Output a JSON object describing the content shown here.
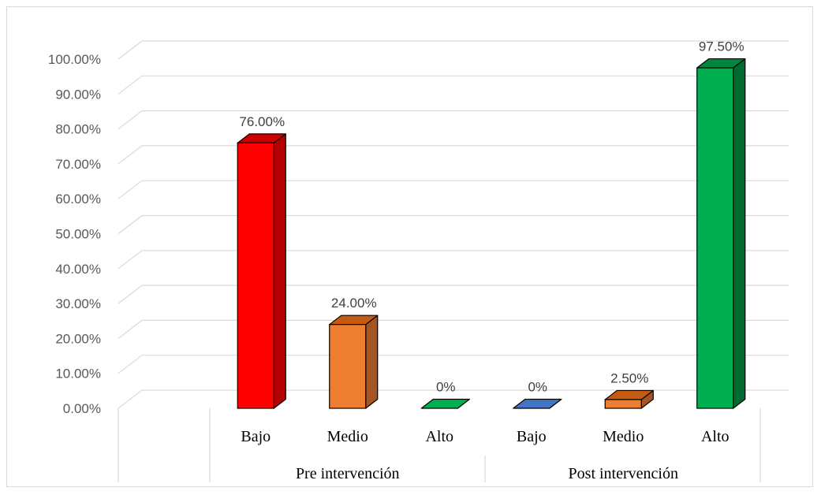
{
  "chart_data": {
    "type": "bar",
    "three_d": true,
    "grid": true,
    "legend": "none",
    "ylim": [
      0,
      100
    ],
    "y_ticks": [
      "0.00%",
      "10.00%",
      "20.00%",
      "30.00%",
      "40.00%",
      "50.00%",
      "60.00%",
      "70.00%",
      "80.00%",
      "90.00%",
      "100.00%"
    ],
    "groups": [
      {
        "label": "Pre intervención",
        "bars": [
          {
            "category": "Bajo",
            "value": 76.0,
            "label": "76.00%",
            "color": "#ff0000",
            "side_color": "#b30000",
            "top_color": "#cc0000"
          },
          {
            "category": "Medio",
            "value": 24.0,
            "label": "24.00%",
            "color": "#ed7d31",
            "side_color": "#a55523",
            "top_color": "#c55a11"
          },
          {
            "category": "Alto",
            "value": 0,
            "label": "0%",
            "color": "#00b050",
            "side_color": "#006b30",
            "top_color": "#00873d"
          }
        ]
      },
      {
        "label": "Post intervención",
        "bars": [
          {
            "category": "Bajo",
            "value": 0,
            "label": "0%",
            "color": "#4472c4",
            "side_color": "#2f528f",
            "top_color": "#3b5fa8"
          },
          {
            "category": "Medio",
            "value": 2.5,
            "label": "2.50%",
            "color": "#ed7d31",
            "side_color": "#a55523",
            "top_color": "#c55a11"
          },
          {
            "category": "Alto",
            "value": 97.5,
            "label": "97.50%",
            "color": "#00b050",
            "side_color": "#006b30",
            "top_color": "#00873d"
          }
        ]
      }
    ]
  }
}
